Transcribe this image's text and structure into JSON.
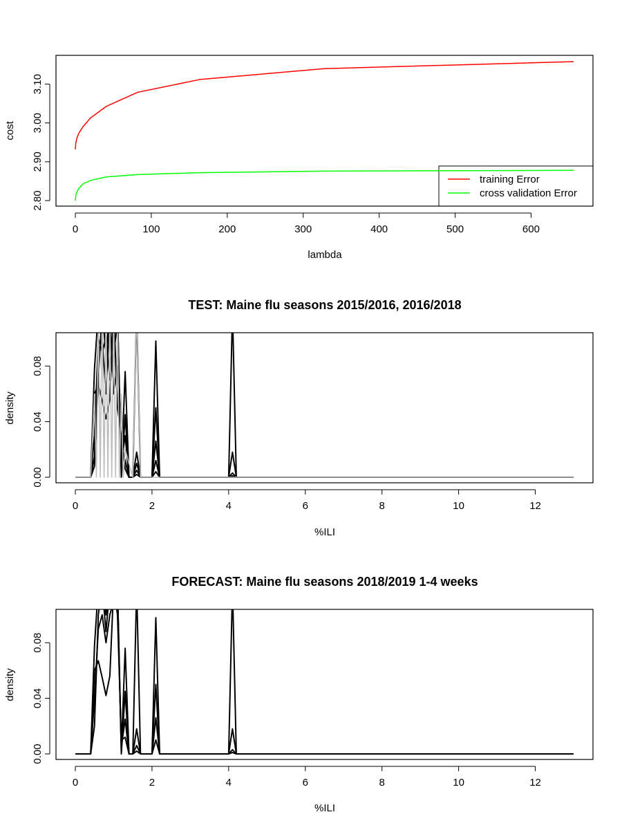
{
  "chart_data": [
    {
      "type": "line",
      "title": "",
      "xlabel": "lambda",
      "ylabel": "cost",
      "xlim": [
        0,
        656
      ],
      "ylim": [
        2.8,
        3.16
      ],
      "xticks": [
        0,
        100,
        200,
        300,
        400,
        500,
        600
      ],
      "xtick_labels": [
        "0",
        "100",
        "200",
        "300",
        "400",
        "500",
        "600"
      ],
      "yticks": [
        2.8,
        2.9,
        3.0,
        3.1
      ],
      "ytick_labels": [
        "2.80",
        "2.90",
        "3.00",
        "3.10"
      ],
      "legend_position": "bottom-right",
      "grid": false,
      "series": [
        {
          "name": "training Error",
          "color": "#ff0000",
          "x": [
            0,
            0.5,
            1,
            2,
            3,
            5,
            10,
            20,
            41,
            82,
            164,
            328,
            656
          ],
          "y": [
            2.932,
            2.945,
            2.952,
            2.96,
            2.966,
            2.975,
            2.99,
            3.013,
            3.043,
            3.079,
            3.112,
            3.14,
            3.158
          ]
        },
        {
          "name": "cross validation Error",
          "color": "#00ff00",
          "x": [
            0,
            0.5,
            1,
            2,
            3,
            5,
            10,
            20,
            41,
            82,
            164,
            328,
            656
          ],
          "y": [
            2.8,
            2.81,
            2.816,
            2.822,
            2.826,
            2.832,
            2.843,
            2.852,
            2.861,
            2.867,
            2.872,
            2.876,
            2.878
          ]
        }
      ]
    },
    {
      "type": "line",
      "title": "TEST: Maine  flu seasons 2015/2016, 2016/2018",
      "xlabel": "%ILI",
      "ylabel": "density",
      "xlim": [
        0,
        13
      ],
      "ylim": [
        0,
        0.1
      ],
      "xticks": [
        0,
        2,
        4,
        6,
        8,
        10,
        12
      ],
      "xtick_labels": [
        "0",
        "2",
        "4",
        "6",
        "8",
        "10",
        "12"
      ],
      "yticks": [
        0,
        0.04,
        0.08
      ],
      "ytick_labels": [
        "0.00",
        "0.04",
        "0.08"
      ],
      "grid": false,
      "series": [
        {
          "color": "#000000",
          "x": [
            0,
            0.2,
            0.4,
            0.5,
            0.6,
            0.7,
            0.8,
            0.9,
            1.0,
            1.1,
            1.2,
            1.3,
            1.4,
            1.5,
            1.6,
            1.7,
            2.0,
            2.1,
            2.2,
            4.0,
            4.1,
            4.2,
            13
          ],
          "y": [
            0,
            0,
            0,
            0.078,
            0.12,
            0.12,
            0.088,
            0.12,
            0.12,
            0.12,
            0.004,
            0.076,
            0,
            0,
            0.12,
            0,
            0,
            0.098,
            0,
            0,
            0.12,
            0,
            0
          ]
        },
        {
          "color": "#000000",
          "x": [
            0,
            0.2,
            0.4,
            0.5,
            0.6,
            0.7,
            0.8,
            0.9,
            1.0,
            1.1,
            1.2,
            1.3,
            1.4,
            1.5,
            1.6,
            1.7,
            2.0,
            2.1,
            2.2,
            4.0,
            4.1,
            4.2,
            13
          ],
          "y": [
            0,
            0,
            0,
            0.06,
            0.067,
            0.055,
            0.042,
            0.056,
            0.12,
            0.12,
            0,
            0.045,
            0,
            0,
            0.018,
            0,
            0,
            0.05,
            0,
            0,
            0.018,
            0,
            0
          ]
        },
        {
          "color": "#000000",
          "x": [
            0,
            0.2,
            0.4,
            0.5,
            0.6,
            0.7,
            0.8,
            0.9,
            1.0,
            1.1,
            1.2,
            1.3,
            1.4,
            1.5,
            1.6,
            1.7,
            2.0,
            2.1,
            2.2,
            4.0,
            4.1,
            4.2,
            13
          ],
          "y": [
            0,
            0,
            0,
            0.03,
            0.1,
            0.09,
            0.1,
            0.07,
            0.09,
            0.11,
            0.01,
            0.03,
            0,
            0,
            0.01,
            0,
            0,
            0.026,
            0,
            0,
            0.003,
            0,
            0
          ]
        },
        {
          "color": "#000000",
          "x": [
            0,
            0.2,
            0.4,
            0.5,
            0.6,
            0.7,
            0.8,
            0.9,
            1.0,
            1.1,
            1.2,
            1.3,
            1.4,
            1.5,
            1.6,
            1.7,
            2.0,
            2.1,
            2.2,
            4.0,
            4.1,
            4.2,
            13
          ],
          "y": [
            0,
            0,
            0,
            0.015,
            0.09,
            0.1,
            0.06,
            0.12,
            0.06,
            0.08,
            0.02,
            0.012,
            0,
            0,
            0.005,
            0,
            0,
            0.012,
            0,
            0,
            0.001,
            0,
            0
          ]
        },
        {
          "color": "#000000",
          "x": [
            0,
            0.2,
            0.4,
            0.5,
            0.6,
            0.7,
            0.8,
            0.9,
            1.0,
            1.1,
            1.2,
            1.3,
            1.4,
            1.5,
            1.6,
            1.7,
            2.0,
            2.1,
            2.2,
            4.0,
            4.1,
            4.2,
            13
          ],
          "y": [
            0,
            0,
            0,
            0.008,
            0.07,
            0.12,
            0.1,
            0.1,
            0.12,
            0.05,
            0.03,
            0.006,
            0,
            0,
            0.002,
            0,
            0,
            0.004,
            0,
            0,
            0,
            0,
            0
          ]
        },
        {
          "color": "#bebebe",
          "x": [
            0,
            0.4,
            0.5,
            0.55,
            0.6,
            0.65,
            0.7,
            0.75,
            0.8,
            0.85,
            0.9,
            0.95,
            1.0,
            1.05,
            1.1,
            1.15,
            1.2,
            1.25,
            1.3,
            1.5,
            1.6,
            1.7,
            13
          ],
          "y": [
            0,
            0,
            0.06,
            0,
            0.12,
            0,
            0.12,
            0,
            0.12,
            0,
            0.12,
            0,
            0.12,
            0,
            0.12,
            0,
            0.06,
            0,
            0.02,
            0,
            0.12,
            0,
            0
          ]
        }
      ]
    },
    {
      "type": "line",
      "title": "FORECAST: Maine flu seasons 2018/2019 1-4 weeks",
      "xlabel": "%ILI",
      "ylabel": "density",
      "xlim": [
        0,
        13
      ],
      "ylim": [
        0,
        0.1
      ],
      "xticks": [
        0,
        2,
        4,
        6,
        8,
        10,
        12
      ],
      "xtick_labels": [
        "0",
        "2",
        "4",
        "6",
        "8",
        "10",
        "12"
      ],
      "yticks": [
        0,
        0.04,
        0.08
      ],
      "ytick_labels": [
        "0.00",
        "0.04",
        "0.08"
      ],
      "grid": false,
      "series": [
        {
          "color": "#000000",
          "x": [
            0,
            0.2,
            0.4,
            0.5,
            0.6,
            0.7,
            0.8,
            0.9,
            1.0,
            1.1,
            1.2,
            1.3,
            1.4,
            1.5,
            1.6,
            1.7,
            2.0,
            2.1,
            2.2,
            4.0,
            4.1,
            4.2,
            13
          ],
          "y": [
            0,
            0,
            0,
            0.078,
            0.12,
            0.12,
            0.088,
            0.12,
            0.12,
            0.12,
            0.002,
            0.076,
            0,
            0,
            0.12,
            0,
            0,
            0.098,
            0,
            0,
            0.12,
            0,
            0
          ]
        },
        {
          "color": "#000000",
          "x": [
            0,
            0.2,
            0.4,
            0.5,
            0.6,
            0.7,
            0.8,
            0.9,
            1.0,
            1.1,
            1.2,
            1.3,
            1.4,
            1.5,
            1.6,
            1.7,
            2.0,
            2.1,
            2.2,
            4.0,
            4.1,
            4.2,
            13
          ],
          "y": [
            0,
            0,
            0,
            0.06,
            0.067,
            0.055,
            0.042,
            0.056,
            0.12,
            0.12,
            0,
            0.045,
            0,
            0,
            0.018,
            0,
            0,
            0.05,
            0,
            0,
            0.018,
            0,
            0
          ]
        },
        {
          "color": "#000000",
          "x": [
            0,
            0.2,
            0.4,
            0.5,
            0.6,
            0.7,
            0.8,
            0.9,
            1.0,
            1.1,
            1.2,
            1.3,
            1.4,
            1.5,
            1.6,
            1.7,
            2.0,
            2.1,
            2.2,
            4.0,
            4.1,
            4.2,
            13
          ],
          "y": [
            0,
            0,
            0,
            0.04,
            0.09,
            0.1,
            0.08,
            0.1,
            0.11,
            0.11,
            0.005,
            0.025,
            0,
            0,
            0.006,
            0,
            0,
            0.026,
            0,
            0,
            0.003,
            0,
            0
          ]
        },
        {
          "color": "#000000",
          "x": [
            0,
            0.2,
            0.4,
            0.5,
            0.6,
            0.7,
            0.8,
            0.9,
            1.0,
            1.1,
            1.2,
            1.3,
            1.4,
            1.5,
            1.6,
            1.7,
            2.0,
            2.1,
            2.2,
            4.0,
            4.1,
            4.2,
            13
          ],
          "y": [
            0,
            0,
            0,
            0.02,
            0.1,
            0.12,
            0.1,
            0.12,
            0.12,
            0.1,
            0.01,
            0.012,
            0,
            0,
            0.002,
            0,
            0,
            0.01,
            0,
            0,
            0.001,
            0,
            0
          ]
        }
      ]
    }
  ]
}
